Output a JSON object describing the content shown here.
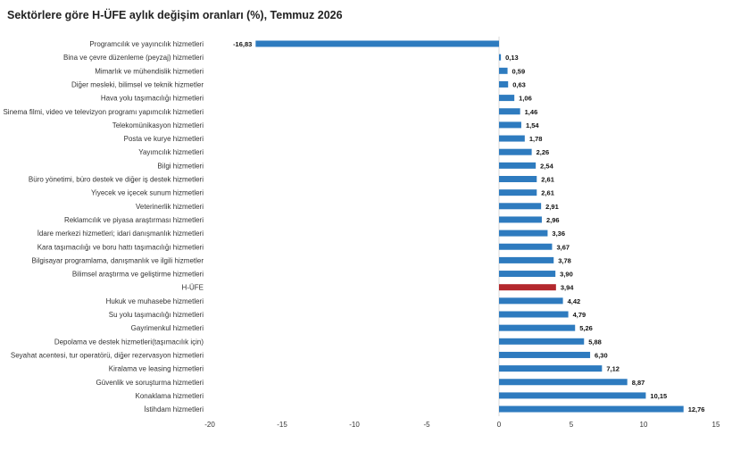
{
  "chart_data": {
    "type": "bar",
    "orientation": "horizontal",
    "title": "Sektörlere göre H-ÜFE aylık değişim oranları (%), Temmuz 2026",
    "xlabel": "",
    "ylabel": "",
    "xlim": [
      -20,
      15
    ],
    "xticks": [
      -20,
      -15,
      -10,
      -5,
      0,
      5,
      10,
      15
    ],
    "grid": false,
    "legend": "none",
    "colors": {
      "default": "#2e7bbf",
      "highlight": "#b3282d"
    },
    "highlight_category": "H-ÜFE",
    "categories": [
      "Programcılık ve yayıncılık hizmetleri",
      "Bina ve çevre düzenleme (peyzaj) hizmetleri",
      "Mimarlık ve mühendislik hizmetleri",
      "Diğer mesleki, bilimsel ve teknik hizmetler",
      "Hava yolu taşımacılığı hizmetleri",
      "Sinema filmi, video ve televizyon programı yapımcılık hizmetleri",
      "Telekomünikasyon hizmetleri",
      "Posta ve kurye hizmetleri",
      "Yayımcılık hizmetleri",
      "Bilgi hizmetleri",
      "Büro yönetimi, büro destek ve diğer iş destek hizmetleri",
      "Yiyecek ve içecek sunum hizmetleri",
      "Veterinerlik hizmetleri",
      "Reklamcılık ve piyasa araştırması hizmetleri",
      "İdare merkezi hizmetleri; idari danışmanlık hizmetleri",
      "Kara taşımacılığı ve boru hattı taşımacılığı hizmetleri",
      "Bilgisayar programlama, danışmanlık ve ilgili hizmetler",
      "Bilimsel araştırma ve geliştirme hizmetleri",
      "H-ÜFE",
      "Hukuk ve muhasebe hizmetleri",
      "Su yolu taşımacılığı hizmetleri",
      "Gayrimenkul hizmetleri",
      "Depolama ve destek hizmetleri(taşımacılık için)",
      "Seyahat acentesi, tur operatörü, diğer rezervasyon hizmetleri",
      "Kiralama ve leasing hizmetleri",
      "Güvenlik ve soruşturma hizmetleri",
      "Konaklama hizmetleri",
      "İstihdam hizmetleri"
    ],
    "values": [
      -16.83,
      0.13,
      0.59,
      0.63,
      1.06,
      1.46,
      1.54,
      1.78,
      2.26,
      2.54,
      2.61,
      2.61,
      2.91,
      2.96,
      3.36,
      3.67,
      3.78,
      3.9,
      3.94,
      4.42,
      4.79,
      5.26,
      5.88,
      6.3,
      7.12,
      8.87,
      10.15,
      12.76
    ],
    "value_labels": [
      "-16,83",
      "0,13",
      "0,59",
      "0,63",
      "1,06",
      "1,46",
      "1,54",
      "1,78",
      "2,26",
      "2,54",
      "2,61",
      "2,61",
      "2,91",
      "2,96",
      "3,36",
      "3,67",
      "3,78",
      "3,90",
      "3,94",
      "4,42",
      "4,79",
      "5,26",
      "5,88",
      "6,30",
      "7,12",
      "8,87",
      "10,15",
      "12,76"
    ]
  }
}
